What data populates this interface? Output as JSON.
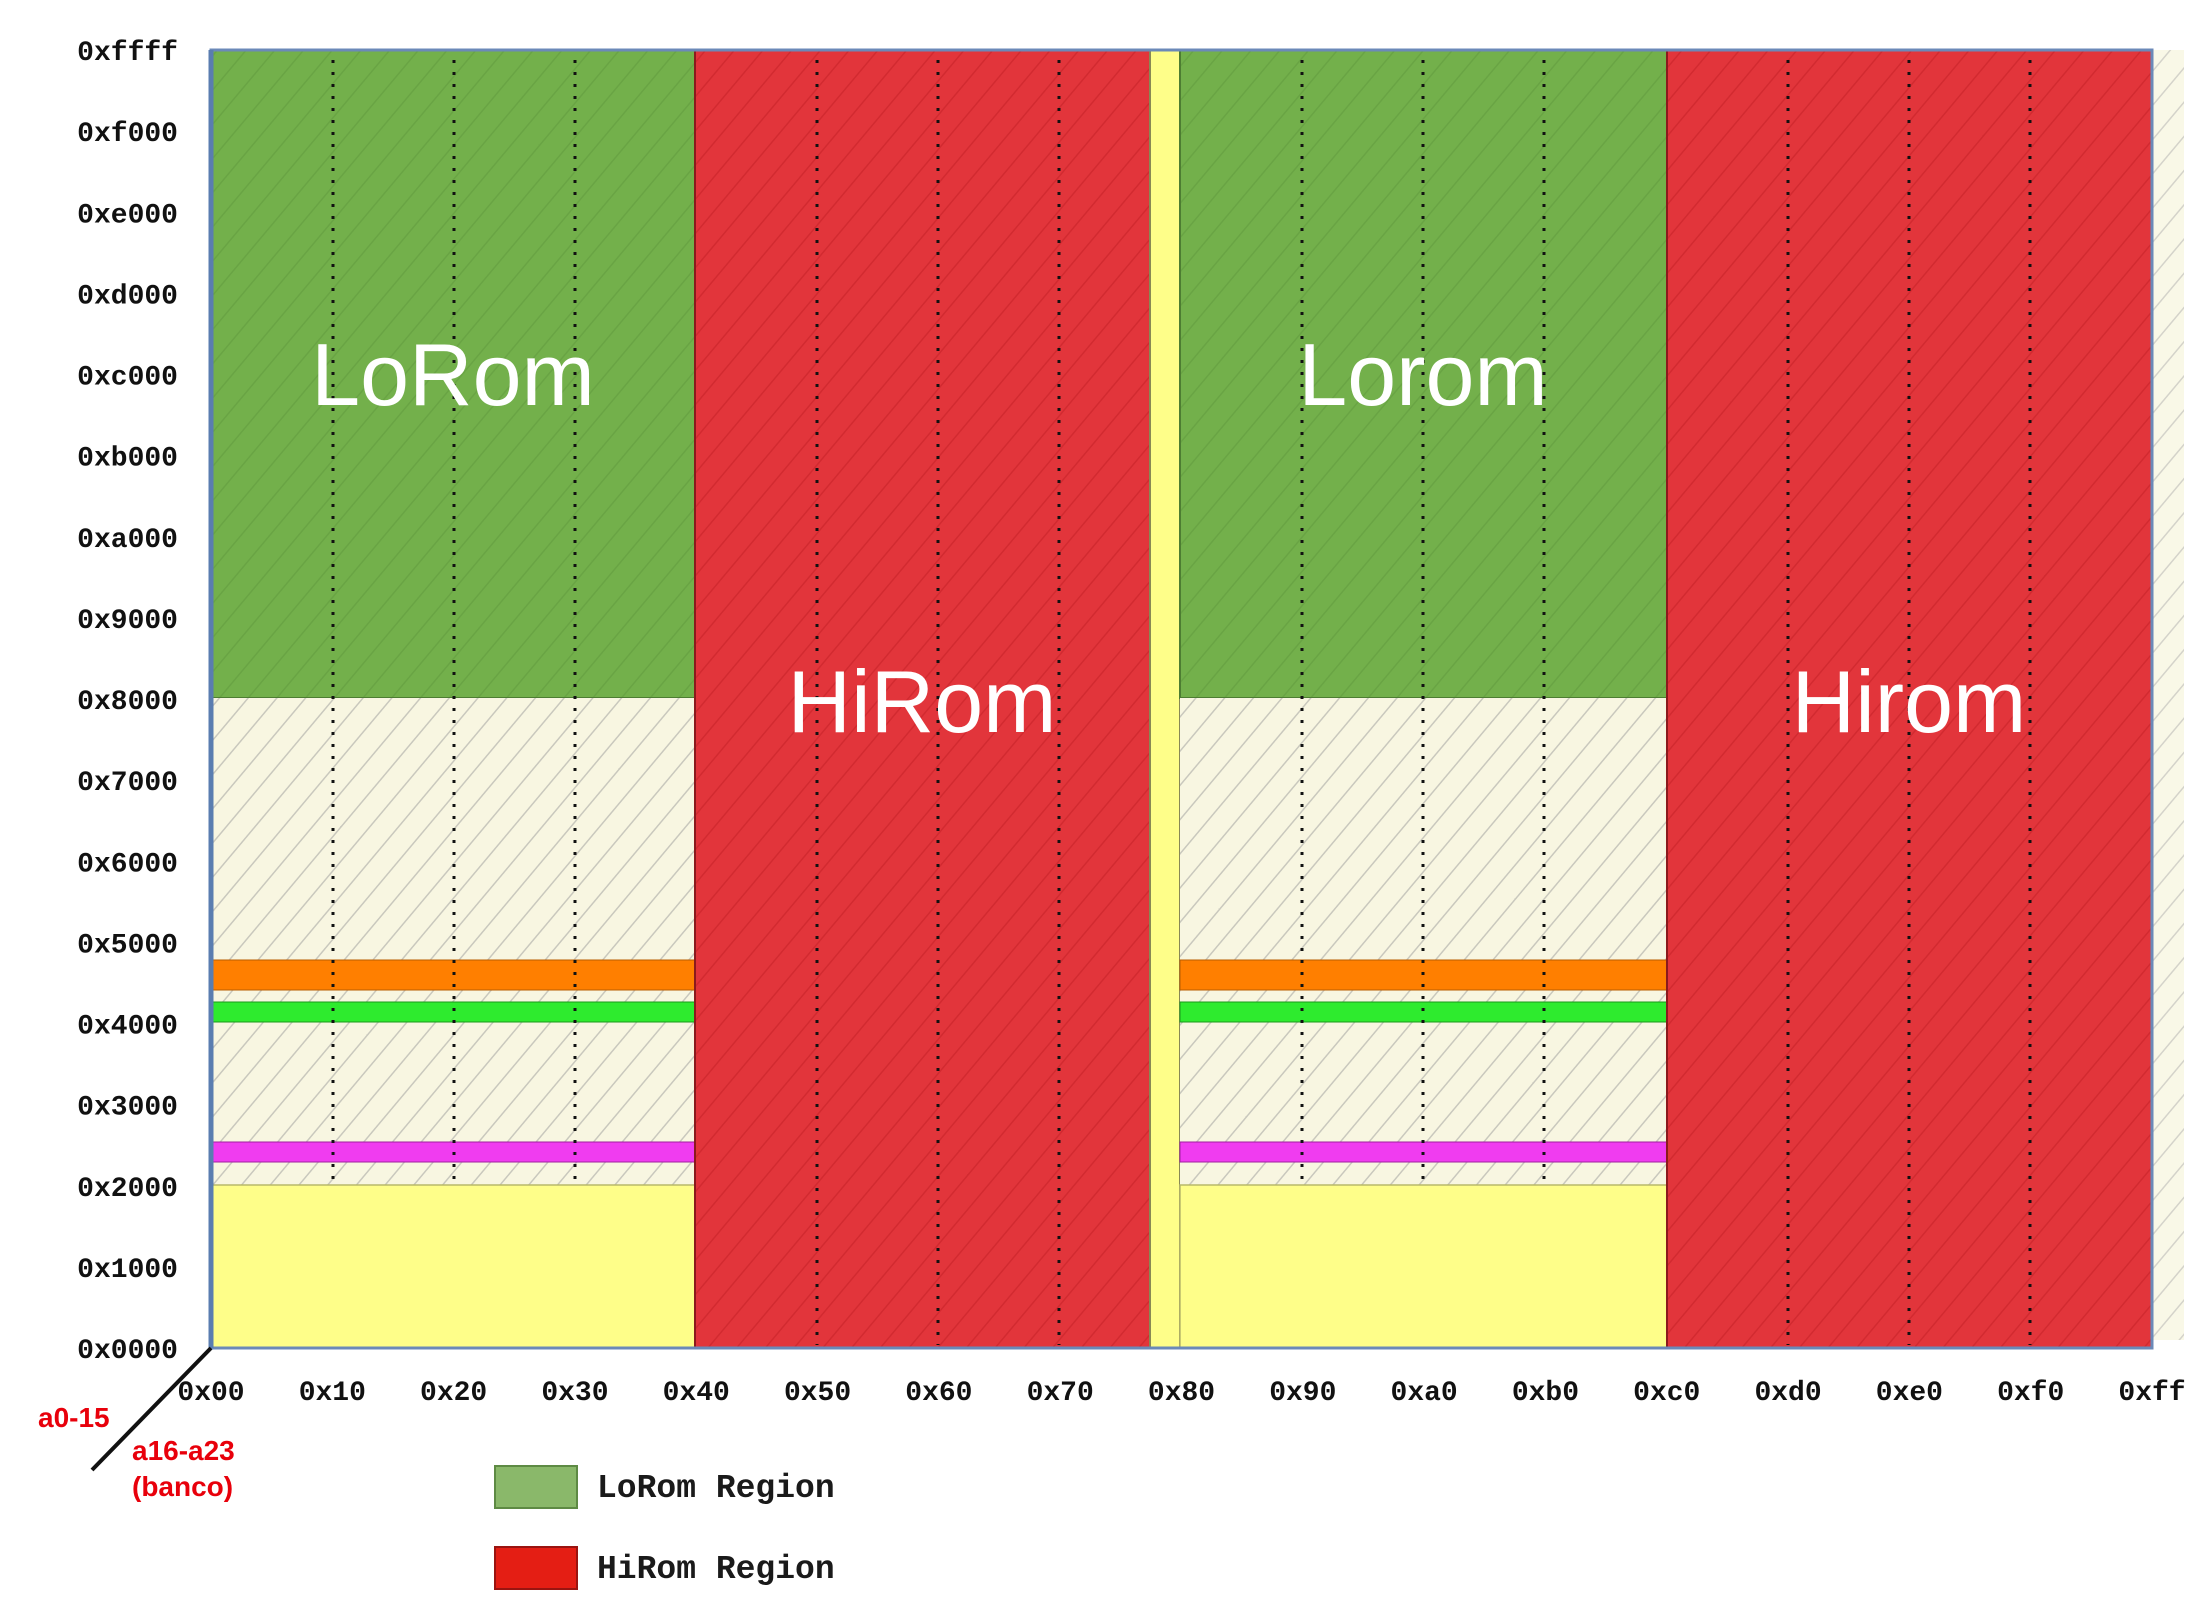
{
  "y_ticks": [
    "0xffff",
    "0xf000",
    "0xe000",
    "0xd000",
    "0xc000",
    "0xb000",
    "0xa000",
    "0x9000",
    "0x8000",
    "0x7000",
    "0x6000",
    "0x5000",
    "0x4000",
    "0x3000",
    "0x2000",
    "0x1000",
    "0x0000"
  ],
  "x_ticks": [
    "0x00",
    "0x10",
    "0x20",
    "0x30",
    "0x40",
    "0x50",
    "0x60",
    "0x70",
    "0x80",
    "0x90",
    "0xa0",
    "0xb0",
    "0xc0",
    "0xd0",
    "0xe0",
    "0xf0",
    "0xff"
  ],
  "axis": {
    "y_label": "a0-15",
    "x_label_line1": "a16-a23",
    "x_label_line2": "(banco)"
  },
  "regions": {
    "lorom_left": "LoRom",
    "hirom_left": "HiRom",
    "lorom_right": "Lorom",
    "hirom_right": "Hirom"
  },
  "legend": [
    {
      "label": "LoRom Region",
      "color": "#8ab86a"
    },
    {
      "label": "HiRom Region",
      "color": "#e41e14"
    }
  ],
  "colors": {
    "lorom": "#73b04b",
    "hirom": "#e2353b",
    "low_ram": "#fefe89",
    "hatched_bg": "#f8f6e1",
    "io_orange": "#ff7f00",
    "io_green": "#2eeb2e",
    "io_magenta": "#f03cf0"
  }
}
